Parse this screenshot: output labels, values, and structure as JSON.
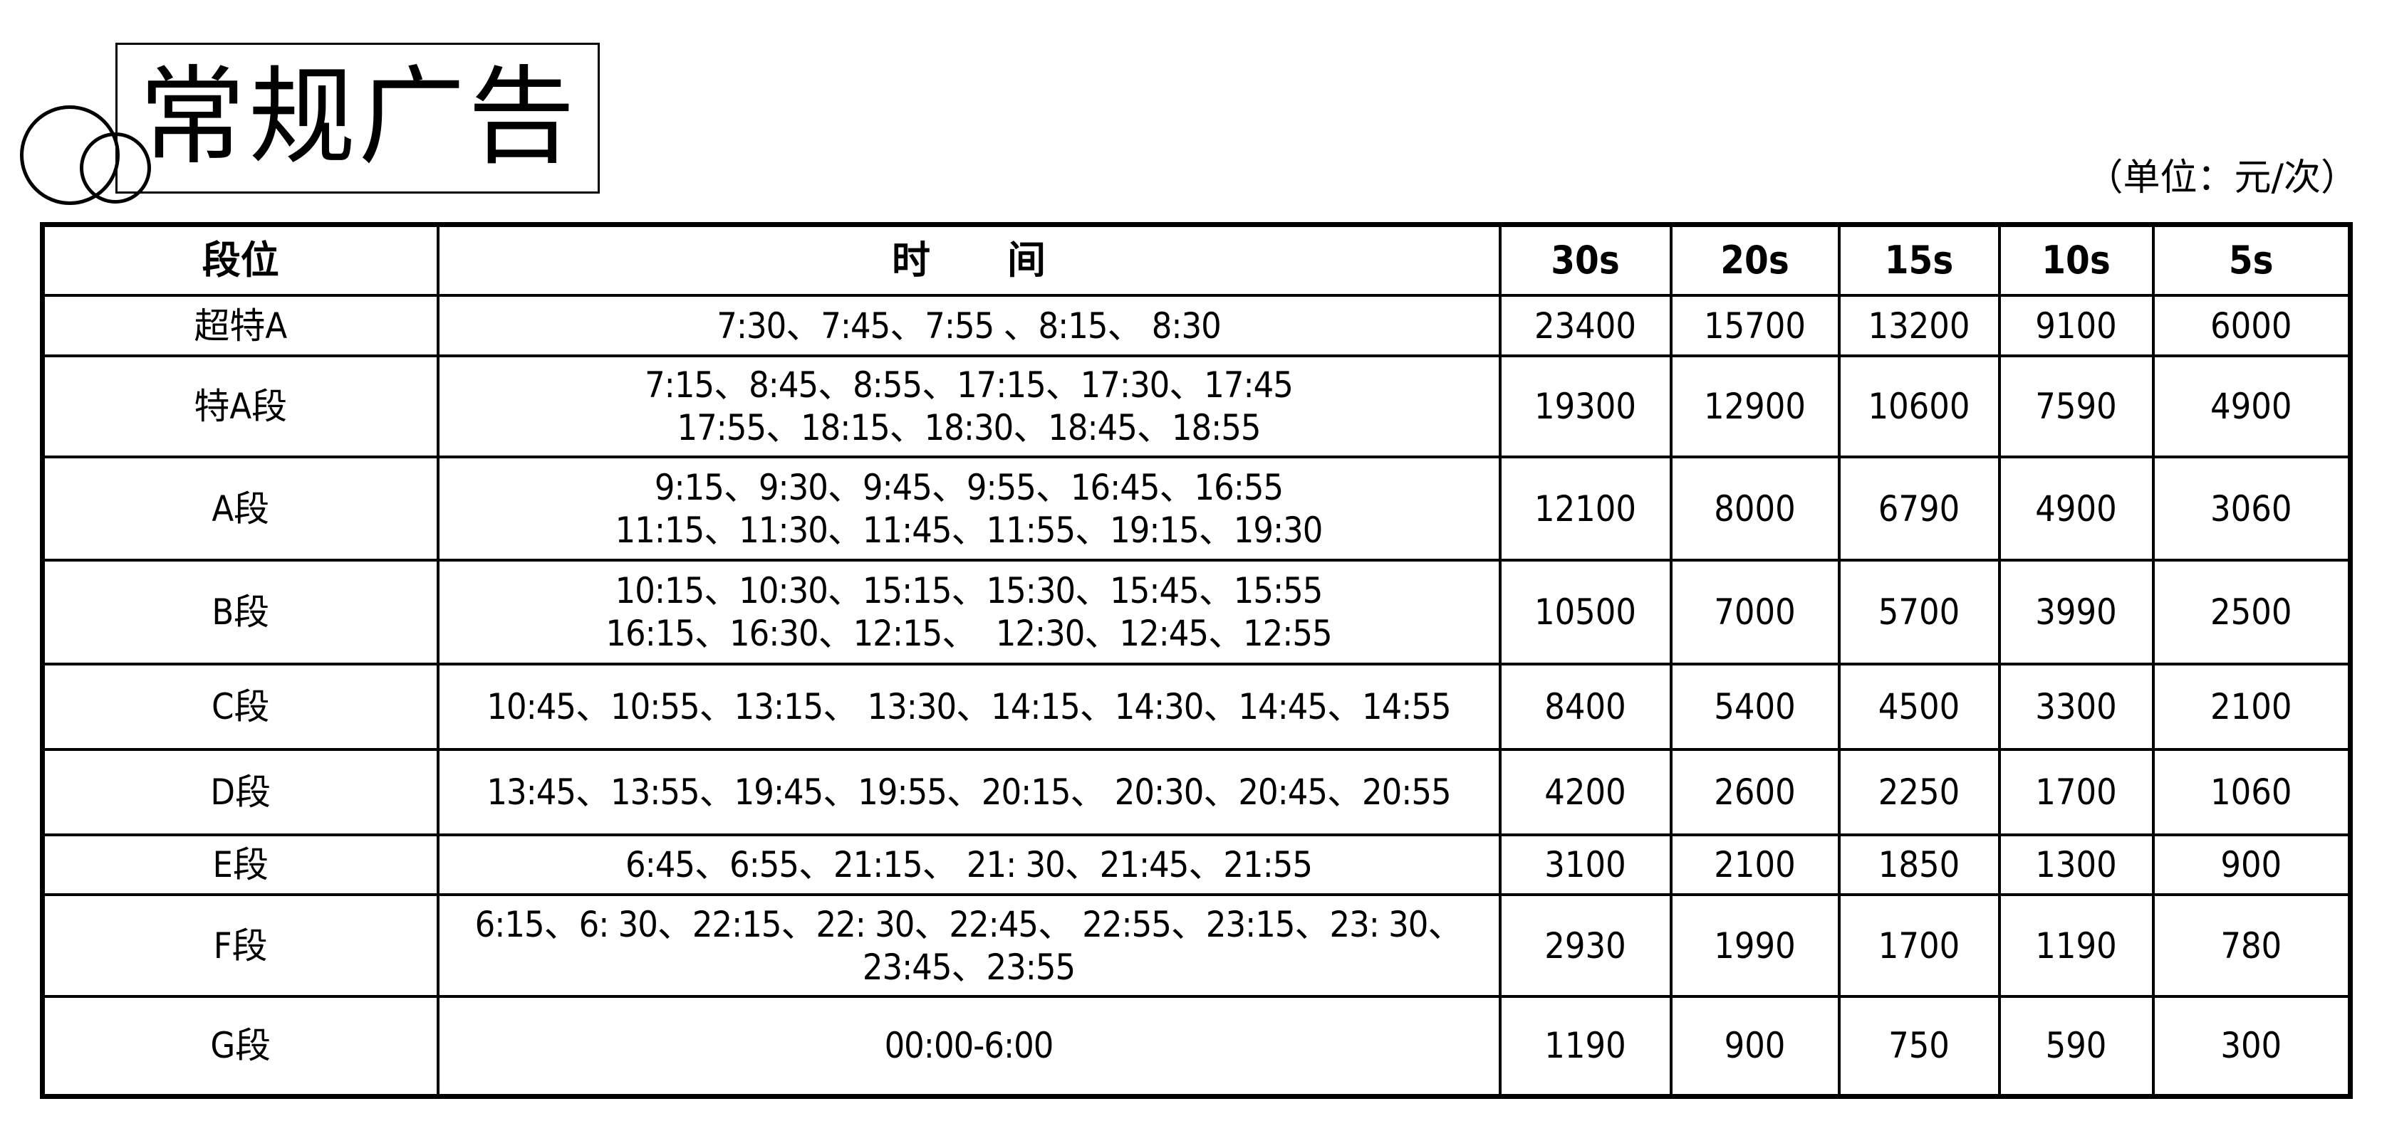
{
  "title": "常规广告",
  "unit": "（单位：元/次）",
  "table": {
    "headers": [
      "段位",
      "时　　间",
      "30s",
      "20s",
      "15s",
      "10s",
      "5s"
    ],
    "rows": [
      {
        "segment": "超特A",
        "times": [
          "7:30、7:45、7:55 、8:15、 8:30"
        ],
        "prices": [
          "23400",
          "15700",
          "13200",
          "9100",
          "6000"
        ]
      },
      {
        "segment": "特A段",
        "times": [
          "7:15、8:45、8:55、17:15、17:30、17:45",
          "17:55、18:15、18:30、18:45、18:55"
        ],
        "prices": [
          "19300",
          "12900",
          "10600",
          "7590",
          "4900"
        ]
      },
      {
        "segment": "A段",
        "times": [
          "9:15、9:30、9:45、9:55、16:45、16:55",
          "11:15、11:30、11:45、11:55、19:15、19:30"
        ],
        "prices": [
          "12100",
          "8000",
          "6790",
          "4900",
          "3060"
        ]
      },
      {
        "segment": "B段",
        "times": [
          "10:15、10:30、15:15、15:30、15:45、15:55",
          "16:15、16:30、12:15、  12:30、12:45、12:55"
        ],
        "prices": [
          "10500",
          "7000",
          "5700",
          "3990",
          "2500"
        ]
      },
      {
        "segment": "C段",
        "times": [
          "10:45、10:55、13:15、 13:30、14:15、14:30、14:45、14:55"
        ],
        "prices": [
          "8400",
          "5400",
          "4500",
          "3300",
          "2100"
        ]
      },
      {
        "segment": "D段",
        "times": [
          "13:45、13:55、19:45、19:55、20:15、 20:30、20:45、20:55"
        ],
        "prices": [
          "4200",
          "2600",
          "2250",
          "1700",
          "1060"
        ]
      },
      {
        "segment": "E段",
        "times": [
          "6:45、6:55、21:15、 21: 30、21:45、21:55"
        ],
        "prices": [
          "3100",
          "2100",
          "1850",
          "1300",
          "900"
        ]
      },
      {
        "segment": "F段",
        "times": [
          "6:15、6: 30、22:15、22: 30、22:45、 22:55、23:15、23: 30、",
          "23:45、23:55"
        ],
        "prices": [
          "2930",
          "1990",
          "1700",
          "1190",
          "780"
        ]
      },
      {
        "segment": "G段",
        "times": [
          "00:00-6:00"
        ],
        "prices": [
          "1190",
          "900",
          "750",
          "590",
          "300"
        ]
      }
    ]
  }
}
